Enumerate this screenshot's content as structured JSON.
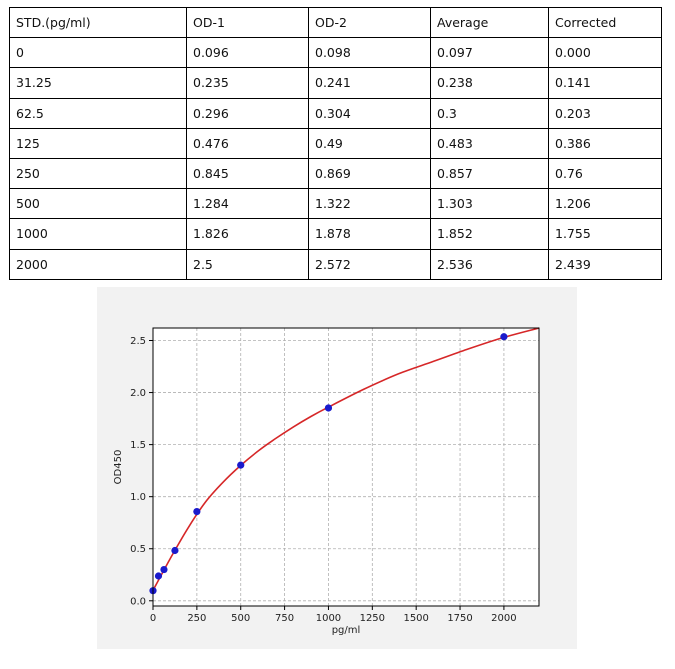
{
  "table": {
    "headers": [
      "STD.(pg/ml)",
      "OD-1",
      "OD-2",
      "Average",
      "Corrected"
    ],
    "rows": [
      [
        "0",
        "0.096",
        "0.098",
        "0.097",
        "0.000"
      ],
      [
        "31.25",
        "0.235",
        "0.241",
        "0.238",
        "0.141"
      ],
      [
        "62.5",
        "0.296",
        "0.304",
        "0.3",
        "0.203"
      ],
      [
        "125",
        "0.476",
        "0.49",
        "0.483",
        "0.386"
      ],
      [
        "250",
        "0.845",
        "0.869",
        "0.857",
        "0.76"
      ],
      [
        "500",
        "1.284",
        "1.322",
        "1.303",
        "1.206"
      ],
      [
        "1000",
        "1.826",
        "1.878",
        "1.852",
        "1.755"
      ],
      [
        "2000",
        "2.5",
        "2.572",
        "2.536",
        "2.439"
      ]
    ]
  },
  "chart_data": {
    "type": "scatter",
    "xlabel": "pg/ml",
    "ylabel": "OD450",
    "xlim": [
      0,
      2200
    ],
    "ylim": [
      -0.05,
      2.62
    ],
    "xticks": [
      0,
      250,
      500,
      750,
      1000,
      1250,
      1500,
      1750,
      2000
    ],
    "xtick_labels": [
      "0",
      "250",
      "500",
      "750",
      "1000",
      "1250",
      "1500",
      "1750",
      "2000"
    ],
    "yticks": [
      0.0,
      0.5,
      1.0,
      1.5,
      2.0,
      2.5
    ],
    "ytick_labels": [
      "0.0",
      "0.5",
      "1.0",
      "1.5",
      "2.0",
      "2.5"
    ],
    "grid": true,
    "points": {
      "x": [
        0,
        31.25,
        62.5,
        125,
        250,
        500,
        1000,
        2000
      ],
      "y": [
        0.097,
        0.238,
        0.3,
        0.483,
        0.857,
        1.303,
        1.852,
        2.536
      ],
      "color": "#1a1acc"
    },
    "fit_curve": {
      "x": [
        0,
        100,
        200,
        300,
        400,
        500,
        600,
        700,
        800,
        900,
        1000,
        1200,
        1400,
        1600,
        1800,
        2000,
        2200
      ],
      "y": [
        0.1,
        0.41,
        0.7,
        0.95,
        1.14,
        1.3,
        1.44,
        1.56,
        1.67,
        1.77,
        1.86,
        2.03,
        2.18,
        2.3,
        2.42,
        2.53,
        2.62
      ],
      "color": "#d62728"
    }
  }
}
